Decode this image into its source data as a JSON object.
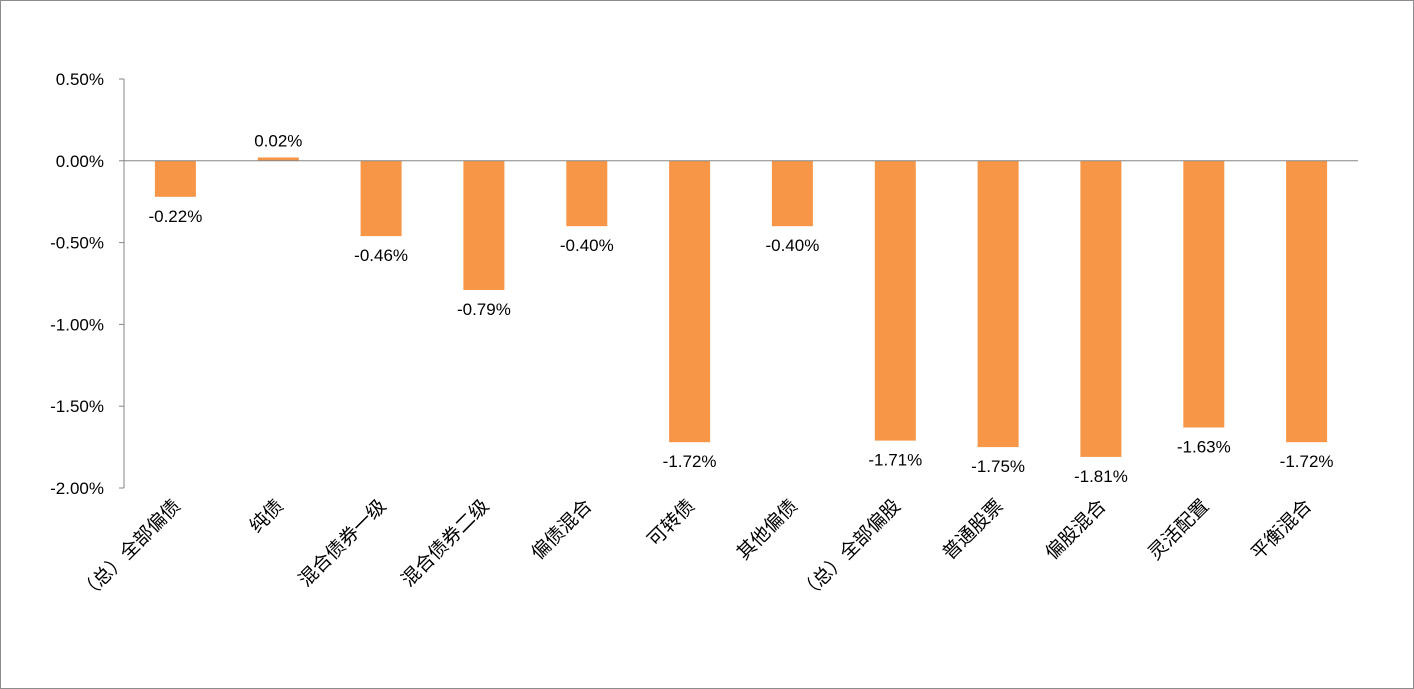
{
  "chart_data": {
    "type": "bar",
    "title": "",
    "xlabel": "",
    "ylabel": "",
    "categories": [
      "（总）全部偏债",
      "纯债",
      "混合债券一级",
      "混合债券二级",
      "偏债混合",
      "可转债",
      "其他偏债",
      "（总）全部偏股",
      "普通股票",
      "偏股混合",
      "灵活配置",
      "平衡混合"
    ],
    "values": [
      -0.22,
      0.02,
      -0.46,
      -0.79,
      -0.4,
      -1.72,
      -0.4,
      -1.71,
      -1.75,
      -1.81,
      -1.63,
      -1.72
    ],
    "value_labels": [
      "-0.22%",
      "0.02%",
      "-0.46%",
      "-0.79%",
      "-0.40%",
      "-1.72%",
      "-0.40%",
      "-1.71%",
      "-1.75%",
      "-1.81%",
      "-1.63%",
      "-1.72%"
    ],
    "ylim": [
      -2.0,
      0.5
    ],
    "y_ticks": [
      0.5,
      0.0,
      -0.5,
      -1.0,
      -1.5,
      -2.0
    ],
    "y_tick_labels": [
      "0.50%",
      "0.00%",
      "-0.50%",
      "-1.00%",
      "-1.50%",
      "-2.00%"
    ],
    "grid": false,
    "legend": "none",
    "bar_color": "#F79646",
    "axis_color": "#868686"
  }
}
